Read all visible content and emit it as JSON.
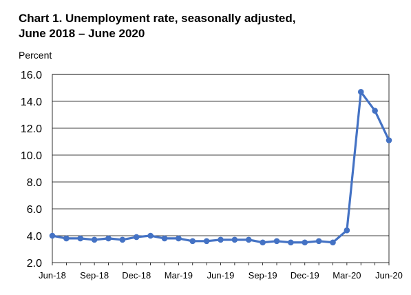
{
  "chart_data": {
    "type": "line",
    "title": "Chart 1. Unemployment rate, seasonally adjusted,",
    "subtitle": "June 2018 – June 2020",
    "ylabel": "Percent",
    "xlabel": "",
    "ylim": [
      2.0,
      16.0
    ],
    "yticks": [
      "2.0",
      "4.0",
      "6.0",
      "8.0",
      "10.0",
      "12.0",
      "14.0",
      "16.0"
    ],
    "xtick_labels": [
      {
        "index": 0,
        "label": "Jun-18"
      },
      {
        "index": 3,
        "label": "Sep-18"
      },
      {
        "index": 6,
        "label": "Dec-18"
      },
      {
        "index": 9,
        "label": "Mar-19"
      },
      {
        "index": 12,
        "label": "Jun-19"
      },
      {
        "index": 15,
        "label": "Sep-19"
      },
      {
        "index": 18,
        "label": "Dec-19"
      },
      {
        "index": 21,
        "label": "Mar-20"
      },
      {
        "index": 24,
        "label": "Jun-20"
      }
    ],
    "x": [
      "Jun-18",
      "Jul-18",
      "Aug-18",
      "Sep-18",
      "Oct-18",
      "Nov-18",
      "Dec-18",
      "Jan-19",
      "Feb-19",
      "Mar-19",
      "Apr-19",
      "May-19",
      "Jun-19",
      "Jul-19",
      "Aug-19",
      "Sep-19",
      "Oct-19",
      "Nov-19",
      "Dec-19",
      "Jan-20",
      "Feb-20",
      "Mar-20",
      "Apr-20",
      "May-20",
      "Jun-20"
    ],
    "series": [
      {
        "values": [
          4.0,
          3.8,
          3.8,
          3.7,
          3.8,
          3.7,
          3.9,
          4.0,
          3.8,
          3.8,
          3.6,
          3.6,
          3.7,
          3.7,
          3.7,
          3.5,
          3.6,
          3.5,
          3.5,
          3.6,
          3.5,
          4.4,
          14.7,
          13.3,
          11.1
        ],
        "color": "#4472c4"
      }
    ],
    "grid": "horizontal",
    "legend": "none"
  }
}
